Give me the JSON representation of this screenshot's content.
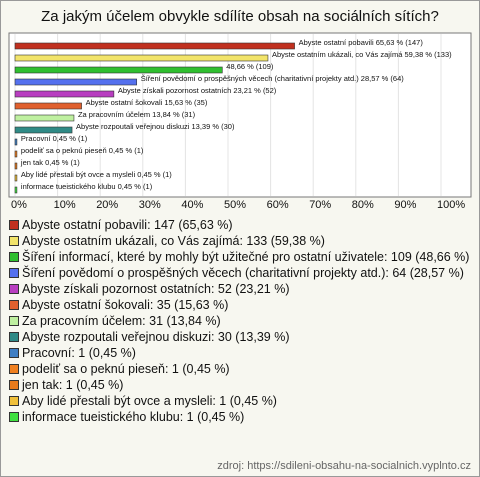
{
  "chart_data": {
    "type": "bar",
    "orientation": "horizontal",
    "title": "Za jakým účelem obvykle sdílíte obsah na sociálních sítích?",
    "values": [
      65.63,
      59.38,
      48.66,
      28.57,
      23.21,
      15.63,
      13.84,
      13.39,
      0.45,
      0.45,
      0.45,
      0.45,
      0.45
    ],
    "value_labels": [
      "Abyste ostatní pobavili 65,63 % (147)",
      "Abyste ostatním ukázali, co Vás zajímá 59,38 % (133)",
      "48,66 % (109)",
      "Šíření povědomí o prospěšných věcech (charitativní projekty atd.) 28,57 % (64)",
      "Abyste získali pozornost ostatních 23,21 % (52)",
      "Abyste ostatní šokovali 15,63 % (35)",
      "Za pracovním účelem 13,84 % (31)",
      "Abyste rozpoutali veřejnou diskuzi 13,39 % (30)",
      "Pracovní 0,45 % (1)",
      "podeliť sa o peknú pieseň 0,45 % (1)",
      "jen tak 0,45 % (1)",
      "Aby lidé přestali být ovce a mysleli 0,45 % (1)",
      "informace tueistického klubu 0,45 % (1)"
    ],
    "legend_labels": [
      "Abyste ostatní pobavili: 147 (65,63 %)",
      "Abyste ostatním ukázali, co Vás zajímá: 133 (59,38 %)",
      "Šíření informací, které by mohly být užitečné pro ostatní uživatele: 109 (48,66 %)",
      "Šíření povědomí o prospěšných věcech (charitativní projekty atd.): 64 (28,57 %)",
      "Abyste získali pozornost ostatních: 52 (23,21 %)",
      "Abyste ostatní šokovali: 35 (15,63 %)",
      "Za pracovním účelem: 31 (13,84 %)",
      "Abyste rozpoutali veřejnou diskuzi: 30 (13,39 %)",
      "Pracovní: 1 (0,45 %)",
      "podeliť sa o peknú pieseň: 1 (0,45 %)",
      "jen tak: 1 (0,45 %)",
      "Aby lidé přestali být ovce a mysleli: 1 (0,45 %)",
      "informace tueistického klubu: 1 (0,45 %)"
    ],
    "colors": [
      "#c0301f",
      "#f2e46a",
      "#2fbf2f",
      "#5470ee",
      "#b83ec0",
      "#e0602e",
      "#bff0a0",
      "#2f8a86",
      "#3f7fc4",
      "#f08020",
      "#e87a1c",
      "#f0c03a",
      "#40e040"
    ],
    "xlim": [
      0,
      100
    ],
    "xticks": [
      {
        "value": 0,
        "label": "0%"
      },
      {
        "value": 10,
        "label": "10%"
      },
      {
        "value": 20,
        "label": "20%"
      },
      {
        "value": 30,
        "label": "30%"
      },
      {
        "value": 40,
        "label": "40%"
      },
      {
        "value": 50,
        "label": "50%"
      },
      {
        "value": 60,
        "label": "60%"
      },
      {
        "value": 70,
        "label": "70%"
      },
      {
        "value": 80,
        "label": "80%"
      },
      {
        "value": 90,
        "label": "90%"
      },
      {
        "value": 100,
        "label": "100%"
      }
    ],
    "grid": true,
    "source": "zdroj: https://sdileni-obsahu-na-socialnich.vyplnto.cz"
  }
}
